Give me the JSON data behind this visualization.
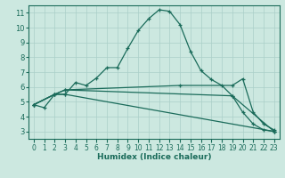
{
  "xlabel": "Humidex (Indice chaleur)",
  "bg_color": "#cce8e0",
  "line_color": "#1a6b5a",
  "grid_color": "#aacfc8",
  "series": [
    {
      "x": [
        0,
        1,
        2,
        3,
        4,
        5,
        6,
        7,
        8,
        9,
        10,
        11,
        12,
        13,
        14,
        15,
        16,
        17,
        18,
        19,
        20,
        21,
        22,
        23
      ],
      "y": [
        4.8,
        4.6,
        5.5,
        5.5,
        6.3,
        6.1,
        6.6,
        7.3,
        7.3,
        8.6,
        9.8,
        10.6,
        11.2,
        11.1,
        10.2,
        8.4,
        7.1,
        6.5,
        6.1,
        5.4,
        4.3,
        3.5,
        3.1,
        3.0
      ]
    },
    {
      "x": [
        0,
        2,
        3,
        23
      ],
      "y": [
        4.8,
        5.5,
        5.5,
        3.0
      ]
    },
    {
      "x": [
        0,
        2,
        3,
        19,
        23
      ],
      "y": [
        4.8,
        5.5,
        5.8,
        5.4,
        3.0
      ]
    },
    {
      "x": [
        0,
        2,
        3,
        14,
        19,
        20,
        21,
        22,
        23
      ],
      "y": [
        4.8,
        5.5,
        5.8,
        6.1,
        6.1,
        6.55,
        4.3,
        3.5,
        3.1
      ]
    }
  ],
  "xlim": [
    -0.5,
    23.5
  ],
  "ylim": [
    2.5,
    11.5
  ],
  "xticks": [
    0,
    1,
    2,
    3,
    4,
    5,
    6,
    7,
    8,
    9,
    10,
    11,
    12,
    13,
    14,
    15,
    16,
    17,
    18,
    19,
    20,
    21,
    22,
    23
  ],
  "yticks": [
    3,
    4,
    5,
    6,
    7,
    8,
    9,
    10,
    11
  ]
}
